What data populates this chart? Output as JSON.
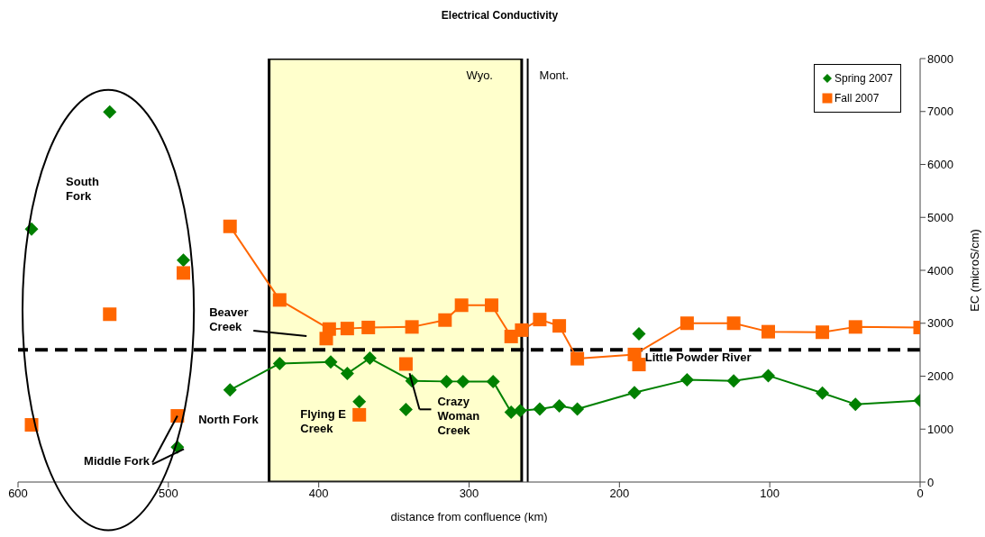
{
  "chart_data": {
    "type": "line",
    "title": "Electrical Conductivity",
    "xlabel": "distance from confluence (km)",
    "ylabel": "EC (microS/cm)",
    "xlim": [
      600,
      0
    ],
    "xticks": [
      600,
      500,
      400,
      300,
      200,
      100,
      0
    ],
    "ylim": [
      0,
      8000
    ],
    "yticks": [
      0,
      1000,
      2000,
      3000,
      4000,
      5000,
      6000,
      7000,
      8000
    ],
    "grid": false,
    "legend": "top right",
    "series": [
      {
        "name": "Spring 2007",
        "type": "line",
        "color": "#008000",
        "marker": "diamond",
        "x": [
          459,
          426,
          392,
          381,
          366,
          338,
          315,
          304,
          284,
          272,
          266,
          253,
          240,
          228,
          190,
          155,
          124,
          101,
          65,
          43,
          0
        ],
        "values": [
          1740,
          2240,
          2270,
          2050,
          2340,
          1910,
          1900,
          1900,
          1900,
          1320,
          1350,
          1380,
          1440,
          1380,
          1690,
          1930,
          1910,
          2010,
          1680,
          1470,
          1540
        ]
      },
      {
        "type": "scatter",
        "color": "#008000",
        "marker": "diamond",
        "x": [
          591,
          539,
          490,
          494,
          396,
          373,
          342,
          187
        ],
        "values": [
          4780,
          6990,
          4190,
          660,
          null,
          1520,
          1370,
          2800
        ]
      },
      {
        "name": "Fall 2007",
        "type": "line",
        "color": "#ff6600",
        "marker": "square",
        "x": [
          459,
          426,
          393,
          381,
          367,
          338,
          316,
          305,
          285,
          272,
          265,
          253,
          240,
          228,
          190,
          155,
          124,
          101,
          65,
          43,
          0
        ],
        "values": [
          4830,
          3440,
          2890,
          2900,
          2920,
          2930,
          3060,
          3340,
          3340,
          2750,
          2870,
          3070,
          2950,
          2330,
          2410,
          3000,
          3000,
          2840,
          2830,
          2930,
          2920
        ]
      },
      {
        "type": "scatter",
        "color": "#ff6600",
        "marker": "square",
        "x": [
          591,
          539,
          490,
          494,
          395,
          373,
          342,
          187
        ],
        "values": [
          1080,
          3170,
          3950,
          1250,
          2710,
          1270,
          2230,
          2220
        ]
      }
    ],
    "bands": [
      {
        "axis": "x",
        "from": 433,
        "to": 265,
        "color": "#ffffcc"
      }
    ],
    "ref_lines": [
      {
        "axis": "x",
        "value": 261,
        "color": "#000000",
        "line_style": "solid"
      },
      {
        "axis": "y",
        "value": 2500,
        "color": "#000000",
        "line_style": "dashed"
      }
    ],
    "annotations": [
      "Wyo.",
      "Mont.",
      "South\nFork",
      {
        "text": "Middle Fork",
        "x": 494,
        "y": 1250
      },
      "North Fork",
      "Beaver\nCreek",
      "Flying E\nCreek",
      "Crazy\nWoman\nCreek",
      "Little Powder River"
    ]
  }
}
